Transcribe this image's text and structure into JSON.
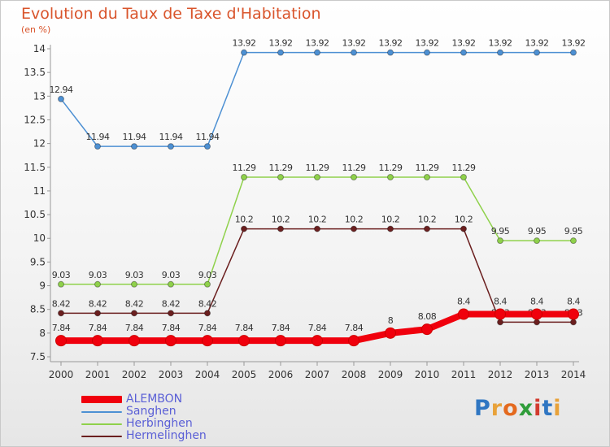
{
  "title": "Evolution du Taux de Taxe d'Habitation",
  "unit": "(en %)",
  "logo": {
    "text": "Proxiti",
    "letters": [
      "P",
      "r",
      "o",
      "x",
      "i",
      "t",
      "i"
    ],
    "colors": [
      "#2f76c2",
      "#e8a23a",
      "#e46a1f",
      "#2f9d3a",
      "#d23b2f",
      "#2f76c2",
      "#e8a23a"
    ]
  },
  "chart_data": {
    "type": "line",
    "x": [
      "2000",
      "2001",
      "2002",
      "2003",
      "2004",
      "2005",
      "2006",
      "2007",
      "2008",
      "2009",
      "2010",
      "2011",
      "2012",
      "2013",
      "2014"
    ],
    "ylim": [
      7.5,
      14
    ],
    "yticks": [
      "7.5",
      "8",
      "8.5",
      "9",
      "9.5",
      "10",
      "10.5",
      "11",
      "11.5",
      "12",
      "12.5",
      "13",
      "13.5",
      "14"
    ],
    "grid": false,
    "legend_position": "bottom-left",
    "series": [
      {
        "name": "ALEMBON",
        "color": "#f0000d",
        "values": [
          7.84,
          7.84,
          7.84,
          7.84,
          7.84,
          7.84,
          7.84,
          7.84,
          7.84,
          8,
          8.08,
          8.4,
          8.4,
          8.4,
          8.4
        ],
        "labels": [
          "7.84",
          "7.84",
          "7.84",
          "7.84",
          "7.84",
          "7.84",
          "7.84",
          "7.84",
          "7.84",
          "8",
          "8.08",
          "8.4",
          "8.4",
          "8.4",
          "8.4"
        ]
      },
      {
        "name": "Sanghen",
        "color": "#4d90d3",
        "values": [
          12.94,
          11.94,
          11.94,
          11.94,
          11.94,
          13.92,
          13.92,
          13.92,
          13.92,
          13.92,
          13.92,
          13.92,
          13.92,
          13.92,
          13.92
        ],
        "labels": [
          "12.94",
          "11.94",
          "11.94",
          "11.94",
          "11.94",
          "13.92",
          "13.92",
          "13.92",
          "13.92",
          "13.92",
          "13.92",
          "13.92",
          "13.92",
          "13.92",
          "13.92"
        ]
      },
      {
        "name": "Herbinghen",
        "color": "#8fd14b",
        "values": [
          9.03,
          9.03,
          9.03,
          9.03,
          9.03,
          11.29,
          11.29,
          11.29,
          11.29,
          11.29,
          11.29,
          11.29,
          9.95,
          9.95,
          9.95
        ],
        "labels": [
          "9.03",
          "9.03",
          "9.03",
          "9.03",
          "9.03",
          "11.29",
          "11.29",
          "11.29",
          "11.29",
          "11.29",
          "11.29",
          "11.29",
          "9.95",
          "9.95",
          "9.95"
        ]
      },
      {
        "name": "Hermelinghen",
        "color": "#6b1f1f",
        "values": [
          8.42,
          8.42,
          8.42,
          8.42,
          8.42,
          10.2,
          10.2,
          10.2,
          10.2,
          10.2,
          10.2,
          10.2,
          8.23,
          8.23,
          8.23
        ],
        "labels": [
          "8.42",
          "8.42",
          "8.42",
          "8.42",
          "8.42",
          "10.2",
          "10.2",
          "10.2",
          "10.2",
          "10.2",
          "10.2",
          "10.2",
          "8.23",
          "8.23",
          "8.23"
        ]
      }
    ]
  }
}
